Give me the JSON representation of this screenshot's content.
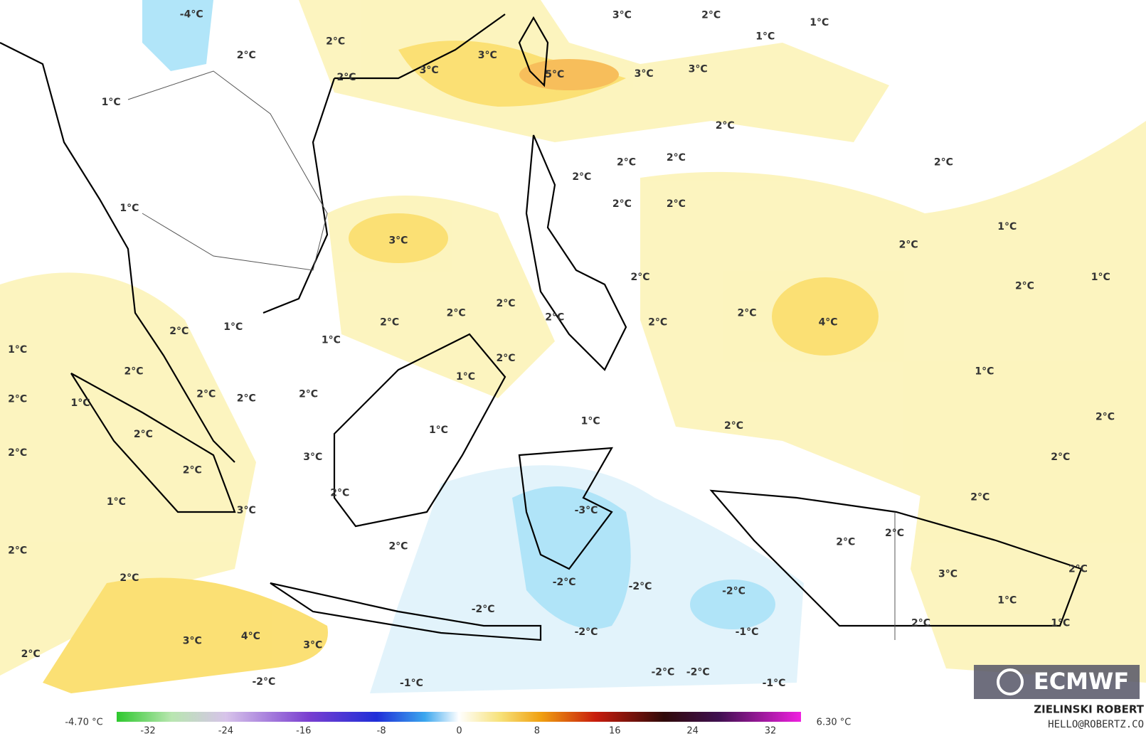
{
  "map": {
    "labels": [
      "-4°C",
      "2°C",
      "2°C",
      "3°C",
      "3°C",
      "2°C",
      "1°C",
      "5°C",
      "3°C",
      "2°C",
      "1°C",
      "1°C",
      "3°C",
      "3°C",
      "2°C",
      "2°C",
      "2°C",
      "2°C",
      "2°C",
      "2°C",
      "2°C",
      "3°C",
      "1°C",
      "1°C",
      "2°C",
      "1°C",
      "2°C",
      "2°C",
      "2°C",
      "2°C",
      "2°C",
      "2°C",
      "2°C",
      "2°C",
      "4°C",
      "1°C",
      "2°C",
      "1°C",
      "1°C",
      "2°C",
      "1°C",
      "2°C",
      "1°C",
      "2°C",
      "1°C",
      "2°C",
      "2°C",
      "2°C",
      "1°C",
      "1°C",
      "2°C",
      "2°C",
      "2°C",
      "2°C",
      "3°C",
      "2°C",
      "2°C",
      "2°C",
      "2°C",
      "1°C",
      "3°C",
      "-3°C",
      "2°C",
      "2°C",
      "2°C",
      "2°C",
      "3°C",
      "2°C",
      "2°C",
      "-2°C",
      "-2°C",
      "-2°C",
      "1°C",
      "-2°C",
      "1°C",
      "2°C",
      "-1°C",
      "-2°C",
      "3°C",
      "4°C",
      "3°C",
      "2°C",
      "-2°C",
      "-2°C",
      "-1°C",
      "-2°C",
      "-1°C"
    ],
    "logo": "ECMWF"
  },
  "colorbar": {
    "min_label": "-4.70 °C",
    "max_label": "6.30 °C",
    "ticks": [
      -32,
      -24,
      -16,
      -8,
      0,
      8,
      16,
      24,
      32
    ]
  },
  "credit": {
    "author": "ZIELINSKI ROBERT",
    "contact": "HELLO@ROBERTZ.CO"
  }
}
